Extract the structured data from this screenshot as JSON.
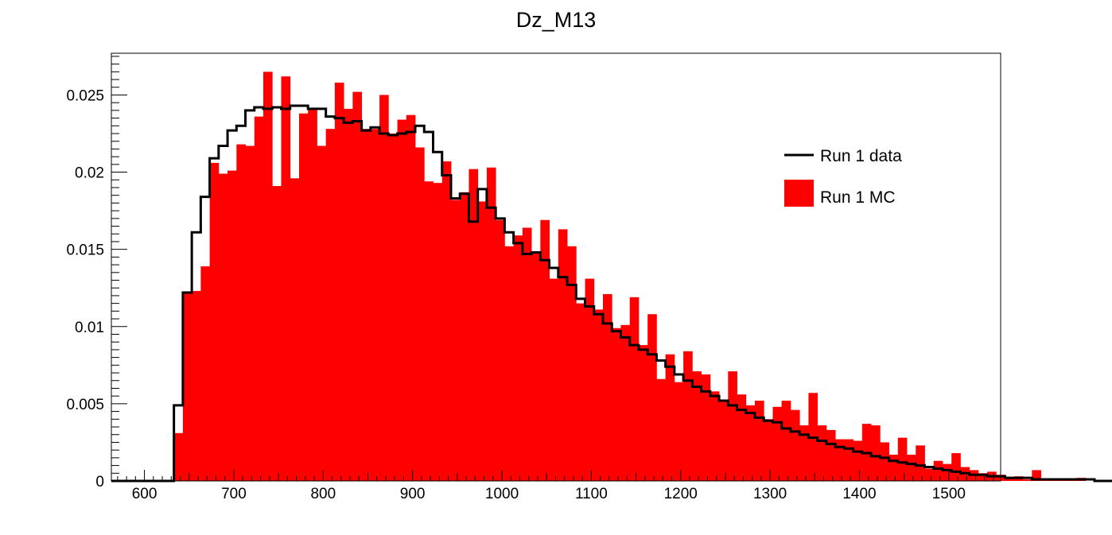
{
  "chart_data": {
    "type": "histogram",
    "title": "Dz_M13",
    "xlabel": "",
    "ylabel": "",
    "xlim": [
      563,
      1558
    ],
    "ylim": [
      0,
      0.0277
    ],
    "bin_start": 563,
    "bin_width": 10,
    "x_ticks": [
      600,
      700,
      800,
      900,
      1000,
      1100,
      1200,
      1300,
      1400,
      1500
    ],
    "y_ticks": [
      {
        "value": 0,
        "label": "0"
      },
      {
        "value": 0.005,
        "label": "0.005"
      },
      {
        "value": 0.01,
        "label": "0.01"
      },
      {
        "value": 0.015,
        "label": "0.015"
      },
      {
        "value": 0.02,
        "label": "0.02"
      },
      {
        "value": 0.025,
        "label": "0.025"
      }
    ],
    "legend_position": "top-right",
    "series": [
      {
        "name": "Run 1 MC",
        "style": "filled",
        "color": "#ff0000",
        "values": [
          0,
          0,
          0,
          0,
          0,
          0,
          0,
          0.0031,
          0.0122,
          0.0123,
          0.0139,
          0.0206,
          0.0199,
          0.0201,
          0.0218,
          0.0217,
          0.0236,
          0.0265,
          0.0191,
          0.0262,
          0.0196,
          0.0238,
          0.0241,
          0.0217,
          0.0228,
          0.0258,
          0.0241,
          0.0252,
          0.0228,
          0.0228,
          0.025,
          0.0225,
          0.0234,
          0.0237,
          0.0216,
          0.0194,
          0.0193,
          0.0207,
          0.0182,
          0.0187,
          0.0202,
          0.0181,
          0.0203,
          0.0169,
          0.0152,
          0.0159,
          0.0164,
          0.0148,
          0.0169,
          0.0131,
          0.0163,
          0.0152,
          0.0115,
          0.0131,
          0.0111,
          0.0121,
          0.0099,
          0.0101,
          0.0119,
          0.0088,
          0.0108,
          0.0066,
          0.0082,
          0.0064,
          0.0084,
          0.0071,
          0.0069,
          0.0058,
          0.0052,
          0.0071,
          0.0056,
          0.0049,
          0.0052,
          0.004,
          0.0048,
          0.0052,
          0.0046,
          0.0036,
          0.0057,
          0.0036,
          0.0033,
          0.0027,
          0.0027,
          0.0026,
          0.0037,
          0.0036,
          0.0025,
          0.0017,
          0.0028,
          0.0017,
          0.0023,
          0.0008,
          0.0013,
          0.0011,
          0.0018,
          0.0009,
          0.0007,
          0.0005,
          0.0006,
          0.0004,
          0.0002,
          0.0003,
          0.0001,
          0.0007,
          0.0001,
          0.0001,
          0.0001,
          0.0001,
          0.0002,
          0,
          0,
          0,
          0,
          0,
          0
        ]
      },
      {
        "name": "Run 1 data",
        "style": "line",
        "color": "#000000",
        "values": [
          0,
          0,
          0,
          0,
          0,
          0,
          0,
          0.0049,
          0.0122,
          0.0161,
          0.0184,
          0.0209,
          0.0217,
          0.0227,
          0.023,
          0.024,
          0.0242,
          0.0241,
          0.0242,
          0.0241,
          0.0243,
          0.0243,
          0.0241,
          0.0241,
          0.0236,
          0.0235,
          0.0232,
          0.0233,
          0.0227,
          0.0229,
          0.0225,
          0.0224,
          0.0225,
          0.0226,
          0.023,
          0.0226,
          0.0213,
          0.0198,
          0.0183,
          0.0186,
          0.0168,
          0.0189,
          0.0177,
          0.017,
          0.0161,
          0.0154,
          0.0147,
          0.0148,
          0.0143,
          0.0138,
          0.0132,
          0.0127,
          0.0118,
          0.0113,
          0.0108,
          0.0102,
          0.0097,
          0.0093,
          0.0088,
          0.0085,
          0.0082,
          0.0078,
          0.0074,
          0.0069,
          0.0065,
          0.0061,
          0.0058,
          0.0055,
          0.0052,
          0.0049,
          0.0046,
          0.0044,
          0.0041,
          0.0039,
          0.0038,
          0.0034,
          0.0032,
          0.003,
          0.0028,
          0.0026,
          0.0024,
          0.0022,
          0.0021,
          0.0019,
          0.0018,
          0.0016,
          0.0015,
          0.0013,
          0.0012,
          0.0011,
          0.001,
          0.0009,
          0.0008,
          0.0007,
          0.0006,
          0.0005,
          0.0004,
          0.0004,
          0.0003,
          0.0003,
          0.0002,
          0.0002,
          0.0002,
          0.0001,
          0.0001,
          0.0001,
          0.0001,
          0.0001,
          0.0001,
          0.0001,
          0,
          0,
          0,
          0,
          0
        ]
      }
    ]
  }
}
